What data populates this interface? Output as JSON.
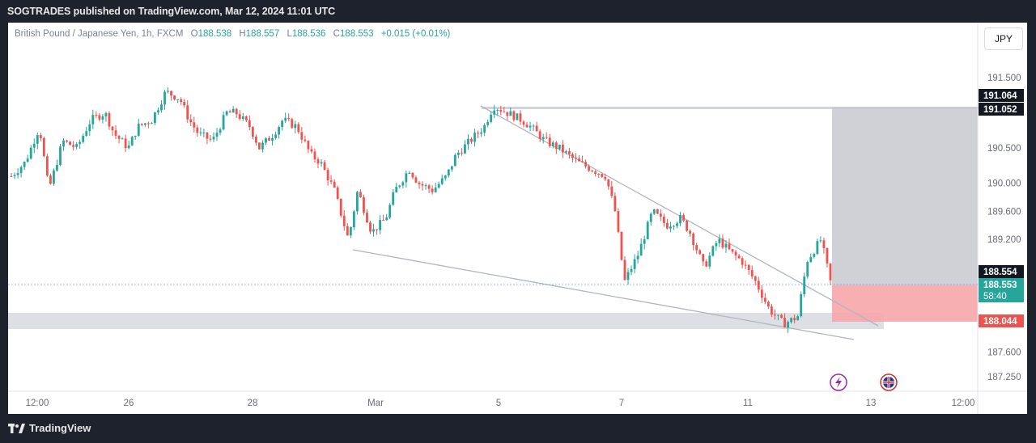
{
  "header": {
    "published": "SOGTRADES published on TradingView.com, Mar 12, 2024 11:01 UTC"
  },
  "legend": {
    "symbol": "British Pound / Japanese Yen, 1h, FXCM",
    "o_label": "O",
    "o": "188.538",
    "h_label": "H",
    "h": "188.557",
    "l_label": "L",
    "l": "188.536",
    "c_label": "C",
    "c": "188.553",
    "change": "+0.015 (+0.01%)"
  },
  "currency_button": "JPY",
  "footer": {
    "brand": "TradingView"
  },
  "chart_data": {
    "type": "candlestick",
    "y_ticks": [
      "191.500",
      "190.500",
      "190.000",
      "189.600",
      "189.200",
      "187.600",
      "187.250"
    ],
    "x_ticks": [
      "12:00",
      "26",
      "28",
      "Mar",
      "5",
      "7",
      "11",
      "13",
      "12:00"
    ],
    "ylim": [
      187.0,
      192.0
    ],
    "price_labels": [
      {
        "text": "191.064",
        "value": 191.064,
        "style": "dark"
      },
      {
        "text": "191.052",
        "value": 191.052,
        "style": "dark"
      },
      {
        "text": "188.554",
        "value": 188.554,
        "style": "dark"
      },
      {
        "text": "188.553",
        "value": 188.553,
        "style": "green",
        "sub": "58:40"
      },
      {
        "text": "188.044",
        "value": 188.044,
        "style": "red"
      }
    ],
    "path": [
      [
        0,
        190.1
      ],
      [
        3,
        190.3
      ],
      [
        6,
        190.8
      ],
      [
        8,
        189.9
      ],
      [
        11,
        190.6
      ],
      [
        14,
        190.5
      ],
      [
        17,
        190.9
      ],
      [
        20,
        191.0
      ],
      [
        22,
        190.7
      ],
      [
        25,
        190.5
      ],
      [
        27,
        190.8
      ],
      [
        30,
        190.9
      ],
      [
        33,
        191.3
      ],
      [
        36,
        191.2
      ],
      [
        38,
        190.9
      ],
      [
        40,
        190.7
      ],
      [
        43,
        190.6
      ],
      [
        46,
        191.0
      ],
      [
        48,
        191.0
      ],
      [
        51,
        190.8
      ],
      [
        53,
        190.5
      ],
      [
        56,
        190.7
      ],
      [
        58,
        190.9
      ],
      [
        61,
        190.8
      ],
      [
        64,
        190.4
      ],
      [
        66,
        190.3
      ],
      [
        69,
        189.9
      ],
      [
        72,
        189.2
      ],
      [
        74,
        189.9
      ],
      [
        77,
        189.3
      ],
      [
        80,
        189.5
      ],
      [
        82,
        189.9
      ],
      [
        85,
        190.2
      ],
      [
        87,
        190.0
      ],
      [
        90,
        189.9
      ],
      [
        93,
        190.1
      ],
      [
        95,
        190.4
      ],
      [
        98,
        190.6
      ],
      [
        101,
        190.8
      ],
      [
        103,
        191.1
      ],
      [
        106,
        191.0
      ],
      [
        109,
        190.9
      ],
      [
        111,
        190.8
      ],
      [
        114,
        190.6
      ],
      [
        117,
        190.5
      ],
      [
        119,
        190.4
      ],
      [
        121,
        190.3
      ],
      [
        124,
        190.2
      ],
      [
        127,
        190.1
      ],
      [
        129,
        189.6
      ],
      [
        131,
        188.6
      ],
      [
        134,
        189.0
      ],
      [
        137,
        189.6
      ],
      [
        140,
        189.4
      ],
      [
        143,
        189.5
      ],
      [
        145,
        189.3
      ],
      [
        148,
        188.8
      ],
      [
        151,
        189.2
      ],
      [
        154,
        189.0
      ],
      [
        156,
        188.9
      ],
      [
        159,
        188.6
      ],
      [
        162,
        188.2
      ],
      [
        165,
        188.0
      ],
      [
        168,
        188.1
      ],
      [
        170,
        188.9
      ],
      [
        173,
        189.2
      ],
      [
        175,
        188.6
      ]
    ],
    "annotations": {
      "upper_trendline": {
        "from": [
          594,
          191.1
        ],
        "to": [
          1085,
          188.0
        ]
      },
      "lower_trendline": {
        "from": [
          436,
          189.0
        ],
        "to": [
          1055,
          187.8
        ]
      },
      "support_zone": {
        "y_top": 188.1,
        "y_bottom": 187.9
      },
      "resistance_line": 191.06,
      "target_box": {
        "top": 191.06,
        "bottom": 188.554
      },
      "stop_box": {
        "top": 188.554,
        "bottom": 188.044
      }
    },
    "grid": false
  }
}
